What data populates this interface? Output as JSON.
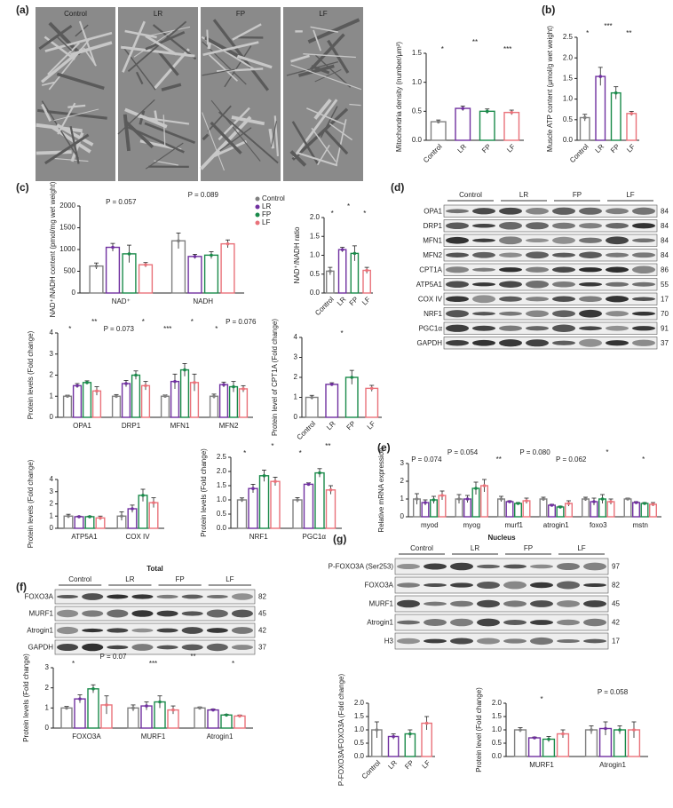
{
  "panels": [
    "(a)",
    "(b)",
    "(c)",
    "(d)",
    "(e)",
    "(f)",
    "(g)"
  ],
  "micrographs": {
    "labels": [
      "Control",
      "LR",
      "FP",
      "LF"
    ]
  },
  "blots": [
    {
      "title": null,
      "groups": [
        "Control",
        "LR",
        "FP",
        "LF"
      ],
      "rows": [
        {
          "label": "OPA1",
          "kda": "84"
        },
        {
          "label": "DRP1",
          "kda": "84"
        },
        {
          "label": "MFN1",
          "kda": "84"
        },
        {
          "label": "MFN2",
          "kda": "84"
        },
        {
          "label": "CPT1A",
          "kda": "86"
        },
        {
          "label": "ATP5A1",
          "kda": "55"
        },
        {
          "label": "COX IV",
          "kda": "17"
        },
        {
          "label": "NRF1",
          "kda": "70"
        },
        {
          "label": "PGC1α",
          "kda": "91"
        },
        {
          "label": "GAPDH",
          "kda": "37"
        }
      ]
    },
    {
      "title": "Total",
      "groups": [
        "Control",
        "LR",
        "FP",
        "LF"
      ],
      "rows": [
        {
          "label": "FOXO3A",
          "kda": "82"
        },
        {
          "label": "MURF1",
          "kda": "45"
        },
        {
          "label": "Atrogin1",
          "kda": "42"
        },
        {
          "label": "GAPDH",
          "kda": "37"
        }
      ]
    },
    {
      "title": "Nucleus",
      "groups": [
        "Control",
        "LR",
        "FP",
        "LF"
      ],
      "rows": [
        {
          "label": "P-FOXO3A (Ser253)",
          "kda": "97"
        },
        {
          "label": "FOXO3A",
          "kda": "82"
        },
        {
          "label": "MURF1",
          "kda": "45"
        },
        {
          "label": "Atrogin1",
          "kda": "42"
        },
        {
          "label": "H3",
          "kda": "17"
        }
      ]
    }
  ],
  "chart_data": [
    {
      "type": "bar",
      "ylabel": "Mitochondria density (number/μm²)",
      "categories": [
        "Control",
        "LR",
        "FP",
        "LF"
      ],
      "values": [
        0.32,
        0.55,
        0.5,
        0.48
      ],
      "errors": [
        0.03,
        0.04,
        0.04,
        0.04
      ],
      "colors": [
        "#808080",
        "#7030a0",
        "#1a8a4a",
        "#e9727a"
      ],
      "ylim": [
        0,
        1.5
      ],
      "yticks": [
        {
          "value": 0,
          "label": "0.0"
        },
        {
          "value": 0.5,
          "label": "0.5"
        },
        {
          "value": 1,
          "label": "1.0"
        },
        {
          "value": 1.5,
          "label": "1.5"
        }
      ],
      "annotations": [
        "*",
        "**",
        "***"
      ]
    },
    {
      "type": "bar",
      "ylabel": "Muscle ATP content (μmol/g wet weight)",
      "categories": [
        "Control",
        "LR",
        "FP",
        "LF"
      ],
      "values": [
        0.55,
        1.55,
        1.15,
        0.65
      ],
      "errors": [
        0.08,
        0.22,
        0.15,
        0.05
      ],
      "colors": [
        "#808080",
        "#7030a0",
        "#1a8a4a",
        "#e9727a"
      ],
      "ylim": [
        0,
        2.5
      ],
      "yticks": [
        {
          "value": 0,
          "label": "0.0"
        },
        {
          "value": 0.5,
          "label": "0.5"
        },
        {
          "value": 1,
          "label": "1.0"
        },
        {
          "value": 1.5,
          "label": "1.5"
        },
        {
          "value": 2,
          "label": "2.0"
        },
        {
          "value": 2.5,
          "label": "2.5"
        }
      ],
      "annotations": [
        "*",
        "***",
        "**"
      ]
    },
    {
      "type": "bar",
      "ylabel": "NAD⁺/NADH content (pmol/mg wet weight)",
      "categories": [
        "NAD⁺",
        "NADH"
      ],
      "series": [
        {
          "name": "Control",
          "color": "#808080",
          "values": [
            620,
            1200
          ],
          "errors": [
            70,
            180
          ]
        },
        {
          "name": "LR",
          "color": "#7030a0",
          "values": [
            1050,
            840
          ],
          "errors": [
            90,
            50
          ]
        },
        {
          "name": "FP",
          "color": "#1a8a4a",
          "values": [
            900,
            870
          ],
          "errors": [
            200,
            80
          ]
        },
        {
          "name": "LF",
          "color": "#e9727a",
          "values": [
            650,
            1130
          ],
          "errors": [
            50,
            90
          ]
        }
      ],
      "ylim": [
        0,
        2000
      ],
      "yticks": [
        0,
        500,
        1000,
        1500,
        2000
      ],
      "legend": "upper right",
      "annotations": [
        "P = 0.057",
        "P = 0.089"
      ]
    },
    {
      "type": "bar",
      "ylabel": "NAD⁺/NADH ratio",
      "categories": [
        "Control",
        "LR",
        "FP",
        "LF"
      ],
      "values": [
        0.58,
        1.15,
        1.05,
        0.6
      ],
      "errors": [
        0.1,
        0.06,
        0.2,
        0.08
      ],
      "colors": [
        "#808080",
        "#7030a0",
        "#1a8a4a",
        "#e9727a"
      ],
      "ylim": [
        0,
        2
      ],
      "yticks": [
        {
          "value": 0,
          "label": "0.0"
        },
        {
          "value": 0.5,
          "label": "0.5"
        },
        {
          "value": 1,
          "label": "1.0"
        },
        {
          "value": 1.5,
          "label": "1.5"
        },
        {
          "value": 2,
          "label": "2.0"
        }
      ],
      "annotations": [
        "*",
        "*",
        "*"
      ]
    },
    {
      "type": "bar",
      "ylabel": "Protein levels (Fold change)",
      "categories": [
        "OPA1",
        "DRP1",
        "MFN1",
        "MFN2"
      ],
      "series": [
        {
          "name": "Control",
          "color": "#808080",
          "values": [
            1,
            1,
            1,
            1
          ],
          "errors": [
            0.05,
            0.08,
            0.06,
            0.1
          ]
        },
        {
          "name": "LR",
          "color": "#7030a0",
          "values": [
            1.5,
            1.6,
            1.7,
            1.55
          ],
          "errors": [
            0.1,
            0.15,
            0.35,
            0.12
          ]
        },
        {
          "name": "FP",
          "color": "#1a8a4a",
          "values": [
            1.65,
            2.0,
            2.25,
            1.45
          ],
          "errors": [
            0.08,
            0.2,
            0.3,
            0.25
          ]
        },
        {
          "name": "LF",
          "color": "#e9727a",
          "values": [
            1.25,
            1.5,
            1.65,
            1.35
          ],
          "errors": [
            0.2,
            0.2,
            0.4,
            0.15
          ]
        }
      ],
      "ylim": [
        0,
        4
      ],
      "yticks": [
        0,
        1,
        2,
        3,
        4
      ],
      "annotations": [
        "*",
        "**",
        "P = 0.073",
        "*",
        "***",
        "*",
        "*",
        "P = 0.076"
      ]
    },
    {
      "type": "bar",
      "ylabel": "Protein level of CPT1A (Fold change)",
      "categories": [
        "Control",
        "LR",
        "FP",
        "LF"
      ],
      "values": [
        1,
        1.65,
        2.0,
        1.45
      ],
      "errors": [
        0.1,
        0.08,
        0.35,
        0.15
      ],
      "colors": [
        "#808080",
        "#7030a0",
        "#1a8a4a",
        "#e9727a"
      ],
      "ylim": [
        0,
        4
      ],
      "yticks": [
        0,
        1,
        2,
        3,
        4
      ],
      "annotations": [
        "*"
      ]
    },
    {
      "type": "bar",
      "ylabel": "Protein levels (Fold change)",
      "categories": [
        "ATP5A1",
        "COX IV"
      ],
      "series": [
        {
          "name": "Control",
          "color": "#808080",
          "values": [
            1,
            1
          ],
          "errors": [
            0.15,
            0.35
          ]
        },
        {
          "name": "LR",
          "color": "#7030a0",
          "values": [
            0.95,
            1.6
          ],
          "errors": [
            0.05,
            0.3
          ]
        },
        {
          "name": "FP",
          "color": "#1a8a4a",
          "values": [
            0.95,
            2.7
          ],
          "errors": [
            0.05,
            0.5
          ]
        },
        {
          "name": "LF",
          "color": "#e9727a",
          "values": [
            0.85,
            2.1
          ],
          "errors": [
            0.15,
            0.4
          ]
        }
      ],
      "ylim": [
        0,
        4
      ],
      "yticks": [
        0,
        1,
        2,
        3,
        4
      ],
      "annotations": []
    },
    {
      "type": "bar",
      "ylabel": "Protein levels (Fold change)",
      "categories": [
        "NRF1",
        "PGC1α"
      ],
      "series": [
        {
          "name": "Control",
          "color": "#808080",
          "values": [
            1,
            1
          ],
          "errors": [
            0.07,
            0.08
          ]
        },
        {
          "name": "LR",
          "color": "#7030a0",
          "values": [
            1.4,
            1.55
          ],
          "errors": [
            0.15,
            0.05
          ]
        },
        {
          "name": "FP",
          "color": "#1a8a4a",
          "values": [
            1.85,
            1.95
          ],
          "errors": [
            0.2,
            0.15
          ]
        },
        {
          "name": "LF",
          "color": "#e9727a",
          "values": [
            1.65,
            1.35
          ],
          "errors": [
            0.15,
            0.15
          ]
        }
      ],
      "ylim": [
        0,
        2.5
      ],
      "yticks": [
        {
          "value": 0,
          "label": "0.0"
        },
        {
          "value": 0.5,
          "label": "0.5"
        },
        {
          "value": 1,
          "label": "1.0"
        },
        {
          "value": 1.5,
          "label": "1.5"
        },
        {
          "value": 2,
          "label": "2.0"
        },
        {
          "value": 2.5,
          "label": "2.5"
        }
      ],
      "annotations": [
        "*",
        "*",
        "*",
        "**"
      ]
    },
    {
      "type": "bar",
      "ylabel": "Relative mRNA expression",
      "categories": [
        "myod",
        "myog",
        "murf1",
        "atrogin1",
        "foxo3",
        "mstn"
      ],
      "series": [
        {
          "name": "Control",
          "color": "#808080",
          "values": [
            1,
            1,
            1,
            1,
            1,
            1
          ],
          "errors": [
            0.3,
            0.25,
            0.15,
            0.1,
            0.1,
            0.05
          ]
        },
        {
          "name": "LR",
          "color": "#7030a0",
          "values": [
            0.8,
            1,
            0.85,
            0.65,
            0.85,
            0.8
          ],
          "errors": [
            0.15,
            0.2,
            0.05,
            0.05,
            0.2,
            0.05
          ]
        },
        {
          "name": "FP",
          "color": "#1a8a4a",
          "values": [
            0.95,
            1.6,
            0.75,
            0.55,
            1.0,
            0.75
          ],
          "errors": [
            0.2,
            0.35,
            0.05,
            0.05,
            0.25,
            0.05
          ]
        },
        {
          "name": "LF",
          "color": "#e9727a",
          "values": [
            1.2,
            1.75,
            0.9,
            0.75,
            0.85,
            0.7
          ],
          "errors": [
            0.25,
            0.35,
            0.15,
            0.15,
            0.15,
            0.1
          ]
        }
      ],
      "ylim": [
        0,
        3
      ],
      "yticks": [
        0,
        1,
        2,
        3
      ],
      "annotations": [
        "P = 0.074",
        "P = 0.054",
        "**",
        "P = 0.080",
        "P = 0.062",
        "*",
        "*"
      ]
    },
    {
      "type": "bar",
      "ylabel": "Protein levels (Fold change)",
      "categories": [
        "FOXO3A",
        "MURF1",
        "Atrogin1"
      ],
      "series": [
        {
          "name": "Control",
          "color": "#808080",
          "values": [
            1,
            1,
            1
          ],
          "errors": [
            0.08,
            0.15,
            0.05
          ]
        },
        {
          "name": "LR",
          "color": "#7030a0",
          "values": [
            1.45,
            1.1,
            0.9
          ],
          "errors": [
            0.2,
            0.2,
            0.05
          ]
        },
        {
          "name": "FP",
          "color": "#1a8a4a",
          "values": [
            1.95,
            1.3,
            0.65
          ],
          "errors": [
            0.2,
            0.3,
            0.03
          ]
        },
        {
          "name": "LF",
          "color": "#e9727a",
          "values": [
            1.15,
            0.9,
            0.6
          ],
          "errors": [
            0.45,
            0.2,
            0.05
          ]
        }
      ],
      "ylim": [
        0,
        3
      ],
      "yticks": [
        0,
        1,
        2,
        3
      ],
      "annotations": [
        "*",
        "P = 0.07",
        "***",
        "**",
        "*"
      ]
    },
    {
      "type": "bar",
      "ylabel": "P-FOXO3A/FOXO3A (Fold change)",
      "categories": [
        "Control",
        "LR",
        "FP",
        "LF"
      ],
      "values": [
        1.0,
        0.75,
        0.85,
        1.25
      ],
      "errors": [
        0.3,
        0.1,
        0.15,
        0.25
      ],
      "colors": [
        "#808080",
        "#7030a0",
        "#1a8a4a",
        "#e9727a"
      ],
      "ylim": [
        0,
        2
      ],
      "yticks": [
        {
          "value": 0,
          "label": "0.0"
        },
        {
          "value": 0.5,
          "label": "0.5"
        },
        {
          "value": 1,
          "label": "1.0"
        },
        {
          "value": 1.5,
          "label": "1.5"
        },
        {
          "value": 2,
          "label": "2.0"
        }
      ],
      "annotations": []
    },
    {
      "type": "bar",
      "ylabel": "Protein level (Fold change)",
      "categories": [
        "MURF1",
        "Atrogin1"
      ],
      "series": [
        {
          "name": "Control",
          "color": "#808080",
          "values": [
            1,
            1
          ],
          "errors": [
            0.08,
            0.15
          ]
        },
        {
          "name": "LR",
          "color": "#7030a0",
          "values": [
            0.7,
            1.05
          ],
          "errors": [
            0.03,
            0.25
          ]
        },
        {
          "name": "FP",
          "color": "#1a8a4a",
          "values": [
            0.65,
            1.0
          ],
          "errors": [
            0.1,
            0.15
          ]
        },
        {
          "name": "LF",
          "color": "#e9727a",
          "values": [
            0.85,
            1.0
          ],
          "errors": [
            0.15,
            0.3
          ]
        }
      ],
      "ylim": [
        0,
        2
      ],
      "yticks": [
        {
          "value": 0,
          "label": "0.0"
        },
        {
          "value": 0.5,
          "label": "0.5"
        },
        {
          "value": 1,
          "label": "1.0"
        },
        {
          "value": 1.5,
          "label": "1.5"
        },
        {
          "value": 2,
          "label": "2.0"
        }
      ],
      "annotations": [
        "*",
        "P = 0.058"
      ]
    }
  ]
}
